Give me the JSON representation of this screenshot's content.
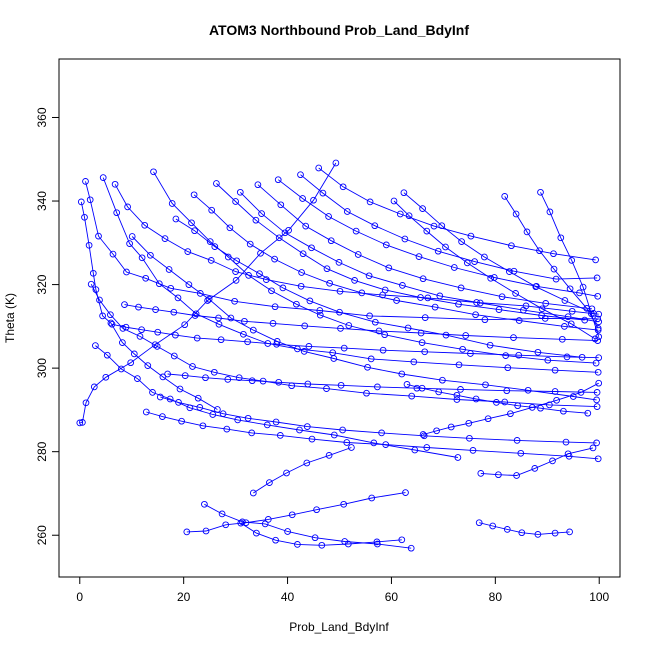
{
  "chart_data": {
    "type": "line",
    "title": "ATOM3 Northbound Prob_Land_BdyInf",
    "xlabel": "Prob_Land_BdyInf",
    "ylabel": "Theta (K)",
    "xlim": [
      -4,
      104
    ],
    "ylim": [
      250,
      374
    ],
    "xticks": [
      0,
      20,
      40,
      60,
      80,
      100
    ],
    "yticks": [
      260,
      280,
      300,
      320,
      340,
      360
    ],
    "grid": false,
    "legend": "none",
    "marker": "open-circle",
    "colors": {
      "series": "#0000ff",
      "axis": "#000000"
    },
    "series": [
      {
        "x": [
          0.0,
          0.5,
          1.2,
          2.8,
          5.0,
          9.8,
          14.5,
          20.2,
          24.6,
          30.1,
          34.8,
          40.2,
          45.0,
          49.3
        ],
        "y": [
          286.9,
          287.0,
          291.7,
          295.5,
          297.8,
          301.3,
          305.6,
          310.4,
          316.2,
          321.0,
          327.5,
          333.0,
          340.2,
          349.1
        ]
      },
      {
        "x": [
          0.3,
          0.9,
          1.8,
          2.6,
          3.1,
          4.4,
          6.0,
          8.2,
          10.5,
          13.1,
          16.0,
          19.3,
          22.8,
          26.5
        ],
        "y": [
          339.8,
          336.1,
          329.4,
          322.7,
          318.8,
          312.5,
          310.8,
          306.1,
          303.4,
          300.6,
          297.9,
          295.0,
          292.8,
          290.1
        ]
      },
      {
        "x": [
          1.1,
          2.0,
          3.6,
          6.4,
          9.0,
          12.7,
          17.5,
          23.2,
          29.8,
          37.6,
          46.2,
          55.8,
          66.5,
          78.0,
          89.6,
          99.7
        ],
        "y": [
          344.7,
          340.3,
          331.6,
          327.3,
          323.0,
          321.5,
          319.1,
          317.9,
          316.0,
          314.7,
          313.8,
          312.5,
          312.1,
          311.6,
          311.9,
          311.8
        ]
      },
      {
        "x": [
          4.5,
          7.1,
          9.6,
          12.0,
          15.3,
          18.9,
          22.4,
          26.8,
          31.5,
          36.2,
          41.9,
          48.7,
          56.1,
          64.3,
          73.0,
          82.4,
          91.5,
          99.8
        ],
        "y": [
          345.6,
          337.2,
          329.8,
          326.4,
          320.2,
          316.8,
          313.0,
          310.5,
          308.1,
          305.9,
          304.6,
          303.7,
          302.2,
          301.5,
          300.8,
          300.1,
          299.5,
          299.0
        ]
      },
      {
        "x": [
          2.2,
          3.8,
          5.9,
          8.3,
          11.6,
          14.9,
          18.2,
          21.7,
          25.9,
          30.7,
          35.3,
          40.8,
          47.5,
          55.2,
          63.9,
          72.6,
          81.8,
          90.4,
          99.6
        ],
        "y": [
          320.1,
          316.3,
          312.8,
          309.5,
          307.6,
          305.2,
          302.9,
          300.4,
          299.0,
          297.7,
          296.9,
          295.8,
          295.1,
          294.0,
          293.3,
          292.5,
          291.9,
          291.2,
          290.8
        ]
      },
      {
        "x": [
          6.8,
          9.2,
          12.5,
          16.4,
          20.8,
          25.3,
          30.0,
          35.9,
          42.6,
          50.1,
          58.3,
          67.0,
          76.4,
          85.9,
          94.8,
          99.9
        ],
        "y": [
          344.0,
          338.6,
          334.2,
          331.0,
          327.9,
          325.8,
          323.1,
          321.2,
          319.6,
          318.4,
          317.5,
          316.8,
          315.7,
          314.9,
          313.6,
          312.9
        ]
      },
      {
        "x": [
          10.1,
          13.6,
          17.2,
          21.0,
          24.9,
          29.1,
          33.4,
          38.0,
          43.2,
          48.9,
          55.4,
          62.0,
          69.8,
          78.1,
          86.3,
          95.0,
          99.5
        ],
        "y": [
          331.5,
          327.0,
          323.6,
          320.0,
          316.5,
          312.0,
          309.1,
          306.4,
          304.0,
          302.3,
          300.2,
          298.6,
          297.1,
          296.0,
          294.7,
          293.2,
          292.4
        ]
      },
      {
        "x": [
          14.2,
          17.8,
          21.5,
          25.1,
          28.6,
          32.5,
          36.9,
          41.7,
          46.3,
          51.8,
          58.7,
          65.9,
          73.7,
          82.0,
          90.1,
          99.4
        ],
        "y": [
          347.0,
          339.4,
          334.8,
          330.3,
          326.6,
          322.2,
          318.5,
          315.3,
          312.7,
          310.2,
          308.0,
          306.1,
          304.5,
          303.0,
          301.9,
          301.2
        ]
      },
      {
        "x": [
          3.0,
          5.3,
          8.0,
          11.1,
          14.0,
          17.4,
          21.2,
          25.6,
          30.4,
          36.1,
          42.3,
          49.0,
          56.6,
          64.5,
          72.8
        ],
        "y": [
          305.4,
          303.1,
          299.8,
          297.5,
          294.2,
          292.6,
          290.5,
          288.9,
          287.6,
          286.4,
          285.2,
          284.0,
          282.1,
          280.4,
          278.6
        ]
      },
      {
        "x": [
          18.5,
          22.1,
          26.0,
          30.2,
          34.6,
          39.1,
          44.3,
          50.0,
          56.9,
          63.2,
          70.5,
          79.0,
          88.2,
          96.7
        ],
        "y": [
          335.7,
          332.9,
          329.1,
          325.7,
          322.6,
          319.2,
          316.1,
          313.4,
          311.0,
          309.6,
          307.9,
          305.5,
          303.8,
          302.6
        ]
      },
      {
        "x": [
          22.0,
          25.4,
          28.9,
          32.8,
          37.5,
          42.7,
          48.1,
          54.3,
          61.0,
          68.4,
          76.2,
          84.6,
          93.3,
          99.8
        ],
        "y": [
          341.5,
          337.8,
          333.6,
          329.7,
          326.1,
          322.9,
          320.3,
          318.0,
          316.2,
          314.6,
          312.8,
          311.4,
          310.0,
          309.1
        ]
      },
      {
        "x": [
          26.3,
          30.0,
          33.9,
          38.4,
          43.0,
          47.6,
          52.9,
          58.8,
          65.6,
          72.9,
          80.7,
          88.9,
          97.2
        ],
        "y": [
          344.2,
          339.9,
          335.4,
          331.2,
          327.4,
          323.8,
          321.0,
          318.7,
          316.9,
          315.3,
          314.0,
          312.6,
          311.5
        ]
      },
      {
        "x": [
          30.9,
          35.0,
          39.5,
          44.6,
          49.9,
          55.7,
          62.1,
          69.3,
          77.1,
          85.4,
          94.0,
          99.9
        ],
        "y": [
          342.1,
          337.0,
          332.4,
          328.8,
          325.3,
          322.1,
          319.8,
          317.3,
          315.6,
          313.9,
          312.3,
          311.1
        ]
      },
      {
        "x": [
          34.3,
          38.7,
          43.5,
          48.4,
          53.6,
          59.5,
          66.1,
          73.4,
          81.3,
          89.7,
          98.6
        ],
        "y": [
          343.9,
          339.1,
          334.0,
          330.5,
          327.2,
          324.0,
          321.4,
          319.2,
          317.1,
          315.5,
          314.2
        ]
      },
      {
        "x": [
          38.2,
          42.9,
          47.9,
          53.2,
          59.0,
          65.3,
          72.1,
          79.8,
          87.9,
          96.2,
          99.7
        ],
        "y": [
          345.1,
          340.6,
          336.3,
          332.8,
          329.5,
          326.7,
          324.1,
          321.7,
          319.6,
          318.0,
          317.2
        ]
      },
      {
        "x": [
          42.5,
          46.8,
          51.5,
          56.8,
          62.6,
          69.0,
          76.0,
          83.6,
          91.7,
          99.6
        ],
        "y": [
          346.3,
          341.9,
          337.5,
          334.1,
          330.9,
          328.0,
          325.5,
          323.2,
          321.3,
          321.6
        ]
      },
      {
        "x": [
          46.0,
          50.7,
          55.9,
          61.7,
          68.2,
          75.3,
          83.1,
          91.2,
          99.3
        ],
        "y": [
          347.9,
          343.4,
          339.8,
          336.9,
          334.0,
          331.6,
          329.3,
          327.4,
          325.9
        ]
      },
      {
        "x": [
          12.8,
          15.9,
          19.6,
          23.7,
          28.3,
          33.1,
          38.6,
          44.7,
          51.4,
          58.9,
          66.8,
          75.7,
          84.9,
          94.2,
          99.8
        ],
        "y": [
          289.5,
          288.4,
          287.3,
          286.2,
          285.4,
          284.5,
          283.9,
          283.0,
          282.2,
          281.7,
          281.0,
          280.3,
          279.6,
          278.9,
          278.3
        ]
      },
      {
        "x": [
          15.5,
          19.0,
          23.1,
          27.6,
          32.4,
          37.8,
          43.8,
          50.6,
          58.1,
          66.3,
          75.0,
          84.2,
          93.6,
          99.5
        ],
        "y": [
          293.1,
          291.8,
          290.6,
          289.1,
          288.0,
          287.1,
          286.0,
          285.2,
          284.5,
          283.8,
          283.2,
          282.7,
          282.3,
          282.1
        ]
      },
      {
        "x": [
          20.6,
          24.3,
          28.1,
          32.0,
          36.3,
          40.9,
          45.6,
          50.8,
          56.2,
          62.7
        ],
        "y": [
          260.8,
          261.0,
          262.5,
          263.0,
          263.8,
          264.9,
          266.1,
          267.4,
          268.9,
          270.2
        ]
      },
      {
        "x": [
          24.0,
          27.4,
          31.3,
          35.7,
          40.0,
          45.3,
          51.0,
          57.3,
          63.8
        ],
        "y": [
          267.4,
          265.1,
          263.2,
          262.7,
          260.9,
          259.4,
          258.5,
          257.9,
          256.9
        ]
      },
      {
        "x": [
          31.0,
          34.0,
          37.7,
          41.9,
          46.6,
          51.7,
          57.2,
          62.0
        ],
        "y": [
          262.9,
          260.5,
          258.8,
          257.8,
          257.6,
          257.9,
          258.4,
          258.9
        ]
      },
      {
        "x": [
          33.4,
          36.5,
          39.8,
          43.7,
          48.0,
          52.3
        ],
        "y": [
          270.1,
          272.6,
          274.9,
          277.3,
          279.1,
          281.0
        ]
      },
      {
        "x": [
          76.9,
          79.5,
          82.3,
          85.1,
          88.2,
          91.5,
          94.3
        ],
        "y": [
          263.0,
          262.2,
          261.4,
          260.6,
          260.2,
          260.5,
          260.8
        ]
      },
      {
        "x": [
          77.2,
          80.6,
          84.1,
          87.6,
          91.0,
          94.0,
          98.8
        ],
        "y": [
          274.8,
          274.5,
          274.3,
          276.0,
          277.8,
          279.5,
          280.9
        ]
      },
      {
        "x": [
          6.2,
          8.9,
          11.9,
          15.0,
          18.4,
          22.6,
          27.2,
          32.3,
          37.9,
          44.1,
          50.9,
          58.4,
          66.4,
          75.2,
          84.5,
          93.8,
          99.9
        ],
        "y": [
          310.5,
          309.8,
          309.2,
          308.6,
          307.9,
          307.2,
          306.8,
          306.3,
          305.7,
          305.2,
          304.8,
          304.3,
          303.9,
          303.5,
          303.1,
          302.7,
          302.5
        ]
      },
      {
        "x": [
          8.6,
          11.3,
          14.6,
          18.1,
          22.2,
          26.7,
          31.7,
          37.2,
          43.3,
          50.2,
          57.6,
          65.7,
          74.3,
          83.5,
          92.9,
          99.7
        ],
        "y": [
          315.2,
          314.6,
          314.0,
          313.4,
          312.6,
          312.0,
          311.2,
          310.7,
          310.1,
          309.5,
          308.9,
          308.4,
          307.8,
          307.3,
          306.9,
          306.6
        ]
      },
      {
        "x": [
          16.9,
          20.3,
          24.2,
          28.5,
          33.2,
          38.3,
          43.9,
          50.3,
          57.3,
          64.9,
          73.3,
          82.2,
          91.5,
          99.6
        ],
        "y": [
          298.6,
          298.2,
          297.7,
          297.3,
          297.0,
          296.6,
          296.2,
          295.9,
          295.5,
          295.2,
          294.9,
          294.6,
          294.4,
          294.2
        ]
      },
      {
        "x": [
          60.5,
          63.4,
          66.8,
          70.4,
          74.6,
          79.1,
          83.9,
          89.0,
          94.6,
          99.2
        ],
        "y": [
          340.0,
          336.5,
          332.8,
          329.0,
          325.2,
          321.5,
          317.9,
          314.2,
          310.6,
          307.0
        ]
      },
      {
        "x": [
          62.4,
          66.0,
          69.7,
          73.5,
          77.9,
          82.7,
          87.8,
          93.4,
          98.9
        ],
        "y": [
          342.0,
          338.2,
          334.1,
          330.3,
          326.6,
          323.1,
          319.5,
          316.2,
          313.1
        ]
      },
      {
        "x": [
          81.8,
          84.0,
          86.1,
          88.5,
          91.3,
          94.4,
          97.6,
          99.8
        ],
        "y": [
          341.1,
          336.9,
          332.6,
          328.1,
          323.7,
          319.0,
          314.3,
          309.5
        ]
      },
      {
        "x": [
          88.7,
          90.5,
          92.6,
          94.7,
          96.9,
          98.5,
          99.9
        ],
        "y": [
          342.1,
          337.4,
          331.2,
          325.8,
          319.4,
          313.0,
          307.5
        ]
      },
      {
        "x": [
          63.0,
          65.9,
          69.1,
          72.6,
          76.3,
          80.2,
          84.3,
          88.7,
          93.1,
          97.8
        ],
        "y": [
          296.1,
          295.2,
          294.3,
          293.5,
          292.6,
          291.8,
          291.0,
          290.4,
          289.7,
          289.2
        ]
      },
      {
        "x": [
          66.1,
          68.7,
          71.5,
          74.9,
          78.6,
          82.9,
          87.1,
          91.8,
          96.5,
          99.9
        ],
        "y": [
          284.1,
          285.0,
          285.9,
          286.8,
          287.9,
          289.1,
          290.6,
          292.3,
          294.2,
          296.4
        ]
      }
    ]
  }
}
